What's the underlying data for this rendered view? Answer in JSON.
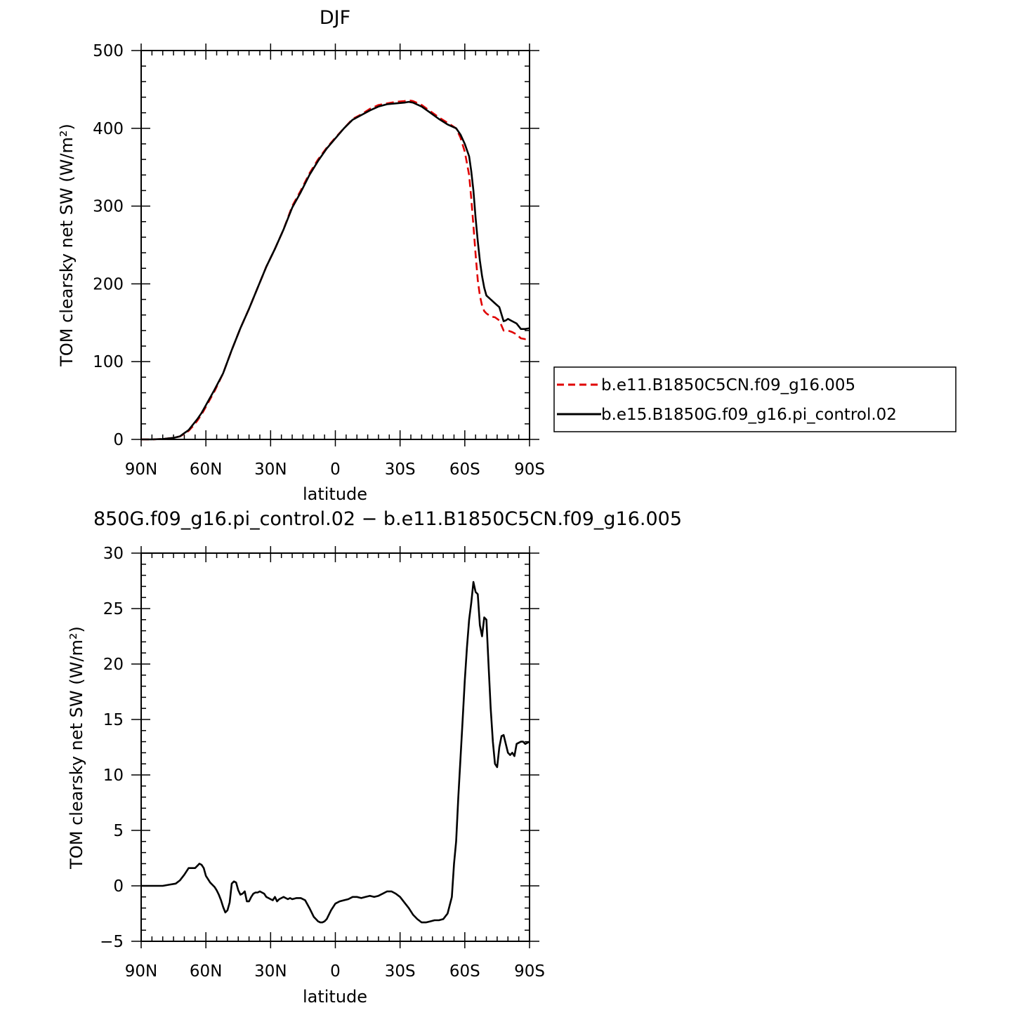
{
  "chart_data": [
    {
      "type": "line",
      "title": "DJF",
      "xlabel": "latitude",
      "ylabel": "TOM clearsky net SW (W/m²)",
      "xlim": [
        -90,
        90
      ],
      "ylim": [
        0,
        500
      ],
      "x_ticks": [
        -90,
        -60,
        -30,
        0,
        30,
        60,
        90
      ],
      "x_tick_labels": [
        "90N",
        "60N",
        "30N",
        "0",
        "30S",
        "60S",
        "90S"
      ],
      "y_ticks": [
        0,
        100,
        200,
        300,
        400,
        500
      ],
      "y_tick_labels": [
        "0",
        "100",
        "200",
        "300",
        "400",
        "500"
      ],
      "legend_position": "right",
      "series": [
        {
          "name": "b.e11.B1850C5CN.f09_g16.005",
          "color": "#e00000",
          "dash": "dashed",
          "x": [
            -90,
            -85,
            -80,
            -75,
            -72,
            -70,
            -68,
            -66,
            -64,
            -62,
            -60,
            -56,
            -52,
            -48,
            -44,
            -40,
            -36,
            -32,
            -28,
            -24,
            -20,
            -16,
            -12,
            -8,
            -4,
            0,
            4,
            8,
            12,
            16,
            20,
            24,
            28,
            32,
            34,
            36,
            40,
            44,
            48,
            52,
            56,
            58,
            60,
            62,
            63,
            64,
            65,
            66,
            67,
            68,
            69,
            70,
            72,
            74,
            76,
            78,
            79,
            80,
            82,
            84,
            86,
            88,
            90
          ],
          "y": [
            0,
            0,
            0.5,
            2,
            4,
            7,
            11,
            17,
            24,
            32,
            42,
            62,
            85,
            115,
            143,
            168,
            195,
            222,
            245,
            270,
            300,
            320,
            342,
            360,
            375,
            388,
            400,
            412,
            418,
            425,
            430,
            432,
            434,
            435,
            436,
            435,
            430,
            422,
            414,
            407,
            400,
            388,
            370,
            340,
            310,
            275,
            238,
            205,
            185,
            172,
            165,
            162,
            158,
            157,
            153,
            140,
            140,
            140,
            138,
            135,
            130,
            129,
            130
          ]
        },
        {
          "name": "b.e15.B1850G.f09_g16.pi_control.02",
          "color": "#000000",
          "dash": "solid",
          "x": [
            -90,
            -85,
            -80,
            -75,
            -72,
            -70,
            -68,
            -66,
            -64,
            -62,
            -60,
            -56,
            -52,
            -48,
            -44,
            -40,
            -36,
            -32,
            -28,
            -24,
            -20,
            -16,
            -12,
            -8,
            -4,
            0,
            4,
            8,
            12,
            16,
            20,
            24,
            28,
            32,
            34,
            36,
            40,
            44,
            48,
            52,
            56,
            58,
            60,
            62,
            63,
            64,
            65,
            66,
            67,
            68,
            69,
            70,
            72,
            74,
            76,
            78,
            79,
            80,
            82,
            84,
            86,
            88,
            90
          ],
          "y": [
            0,
            0,
            0.5,
            2,
            4,
            8,
            12,
            19,
            26,
            34,
            44,
            64,
            85,
            115,
            143,
            168,
            195,
            222,
            245,
            270,
            298,
            318,
            340,
            358,
            374,
            387,
            400,
            411,
            417,
            423,
            428,
            431,
            432,
            433,
            434,
            433,
            428,
            420,
            412,
            405,
            400,
            392,
            380,
            364,
            345,
            320,
            285,
            255,
            230,
            210,
            195,
            185,
            180,
            175,
            170,
            152,
            153,
            155,
            152,
            149,
            142,
            142,
            143
          ]
        }
      ]
    },
    {
      "type": "line",
      "title": "850G.f09_g16.pi_control.02 − b.e11.B1850C5CN.f09_g16.005",
      "xlabel": "latitude",
      "ylabel": "TOM clearsky net SW (W/m²)",
      "xlim": [
        -90,
        90
      ],
      "ylim": [
        -5,
        30
      ],
      "x_ticks": [
        -90,
        -60,
        -30,
        0,
        30,
        60,
        90
      ],
      "x_tick_labels": [
        "90N",
        "60N",
        "30N",
        "0",
        "30S",
        "60S",
        "90S"
      ],
      "y_ticks": [
        -5,
        0,
        5,
        10,
        15,
        20,
        25,
        30
      ],
      "y_tick_labels": [
        "−5",
        "0",
        "5",
        "10",
        "15",
        "20",
        "25",
        "30"
      ],
      "series": [
        {
          "color": "#000000",
          "dash": "solid",
          "x": [
            -90,
            -85,
            -80,
            -77,
            -74,
            -72,
            -70,
            -68,
            -66,
            -65,
            -64,
            -63,
            -62,
            -61,
            -60,
            -58,
            -56,
            -55,
            -54,
            -53,
            -52,
            -51,
            -50,
            -49,
            -48,
            -47,
            -46,
            -45,
            -44,
            -43,
            -42,
            -41,
            -40,
            -39,
            -38,
            -37,
            -36,
            -35,
            -34,
            -33,
            -32,
            -31,
            -30,
            -29,
            -28,
            -27,
            -26,
            -25,
            -24,
            -23,
            -22,
            -21,
            -20,
            -18,
            -16,
            -14,
            -12,
            -10,
            -9,
            -8,
            -7,
            -6,
            -5,
            -4,
            -2,
            0,
            2,
            4,
            6,
            8,
            10,
            12,
            14,
            16,
            18,
            20,
            22,
            24,
            26,
            28,
            30,
            32,
            34,
            36,
            38,
            40,
            42,
            44,
            46,
            48,
            50,
            52,
            54,
            55,
            56,
            57,
            58,
            59,
            60,
            61,
            62,
            63,
            64,
            65,
            66,
            67,
            68,
            69,
            70,
            71,
            72,
            73,
            74,
            75,
            76,
            77,
            78,
            79,
            80,
            81,
            82,
            83,
            84,
            85,
            86,
            87,
            88,
            89,
            90
          ],
          "y": [
            0,
            0,
            0,
            0.1,
            0.2,
            0.5,
            1.0,
            1.6,
            1.6,
            1.6,
            1.8,
            2.0,
            1.9,
            1.6,
            0.9,
            0.3,
            -0.1,
            -0.4,
            -0.8,
            -1.3,
            -1.9,
            -2.4,
            -2.2,
            -1.5,
            0.2,
            0.4,
            0.3,
            -0.4,
            -0.8,
            -0.7,
            -0.5,
            -1.4,
            -1.4,
            -1.0,
            -0.7,
            -0.6,
            -0.6,
            -0.5,
            -0.6,
            -0.7,
            -1.0,
            -1.1,
            -1.2,
            -1.3,
            -1.0,
            -1.4,
            -1.2,
            -1.1,
            -1.0,
            -1.1,
            -1.2,
            -1.1,
            -1.2,
            -1.1,
            -1.1,
            -1.3,
            -2.0,
            -2.8,
            -3.0,
            -3.2,
            -3.3,
            -3.3,
            -3.2,
            -3.0,
            -2.2,
            -1.6,
            -1.4,
            -1.3,
            -1.2,
            -1.0,
            -1.0,
            -1.1,
            -1.0,
            -0.9,
            -1.0,
            -0.9,
            -0.7,
            -0.5,
            -0.5,
            -0.7,
            -1.0,
            -1.5,
            -2.0,
            -2.6,
            -3.0,
            -3.3,
            -3.3,
            -3.2,
            -3.1,
            -3.1,
            -3.0,
            -2.5,
            -1.0,
            2.0,
            4.0,
            8.0,
            11.5,
            15.0,
            18.5,
            21.5,
            24.0,
            25.5,
            27.4,
            26.5,
            26.3,
            23.5,
            22.5,
            24.2,
            24.0,
            20.0,
            16.0,
            13.0,
            11.0,
            10.7,
            12.5,
            13.5,
            13.6,
            12.8,
            12.0,
            11.8,
            12.0,
            11.7,
            12.8,
            12.9,
            13.0,
            13.0,
            12.8,
            12.9,
            13.0
          ]
        }
      ]
    }
  ]
}
